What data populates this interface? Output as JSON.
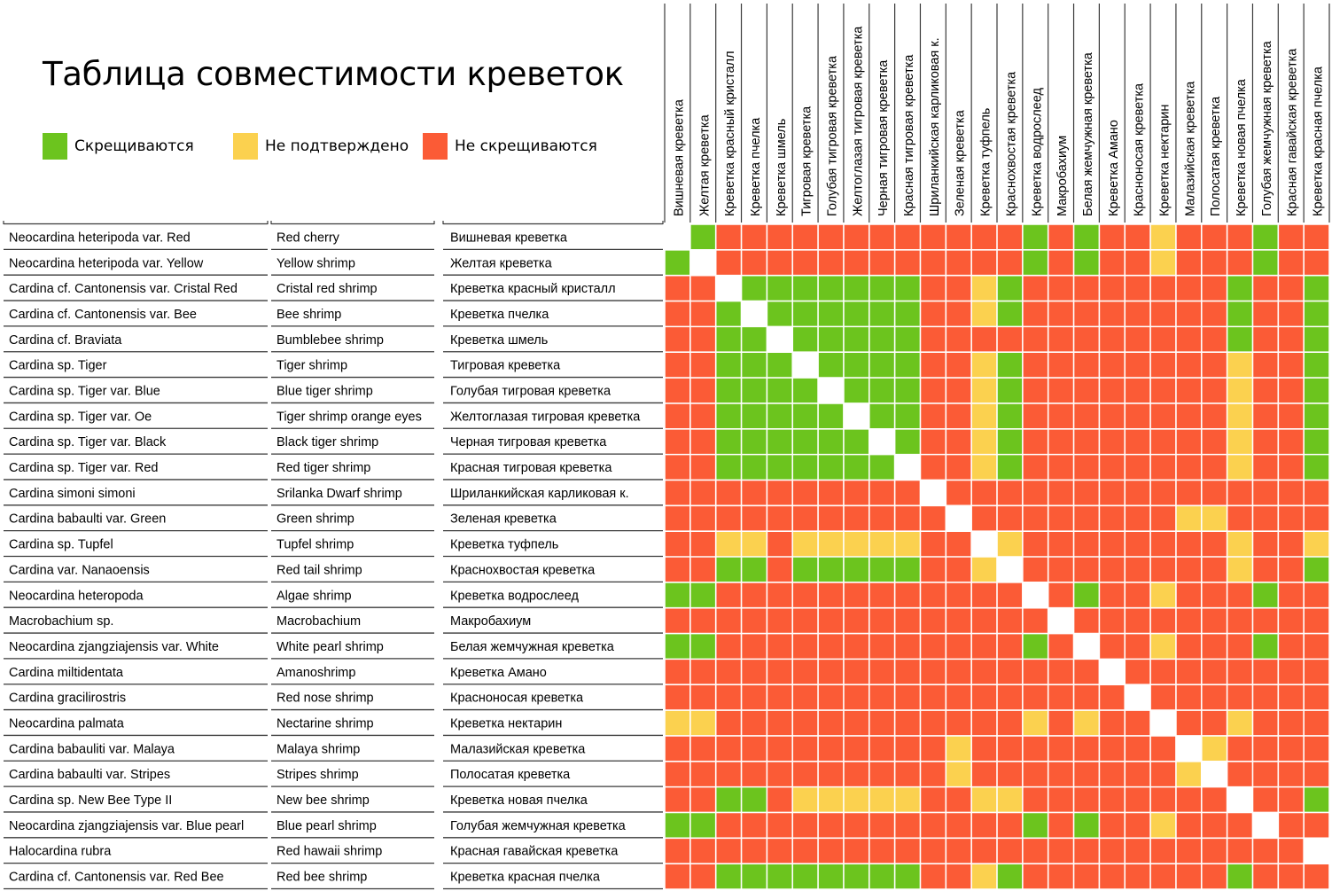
{
  "title": "Таблица совместимости креветок",
  "legend": [
    {
      "label": "Скрещиваются",
      "color": "#6cc41e"
    },
    {
      "label": "Не подтверждено",
      "color": "#fbd14f"
    },
    {
      "label": "Не скрещиваются",
      "color": "#fb5b36"
    }
  ],
  "colors": {
    "G": "#6cc41e",
    "Y": "#fbd14f",
    "R": "#fb5b36",
    "self": "#ffffff",
    "grid": "#ffffff",
    "rowline": "#3a3a3a"
  },
  "chart_data": {
    "type": "heatmap",
    "title": "Таблица совместимости креветок",
    "legend": {
      "G": "Скрещиваются",
      "Y": "Не подтверждено",
      "R": "Не скрещиваются",
      "-": ""
    },
    "columns": [
      "Вишневая креветка",
      "Желтая креветка",
      "Креветка красный кристалл",
      "Креветка пчелка",
      "Креветка шмель",
      "Тигровая креветка",
      "Голубая тигровая креветка",
      "Желтоглазая тигровая креветка",
      "Черная тигровая креветка",
      "Красная тигровая креветка",
      "Шриланкийская карликовая к.",
      "Зеленая креветка",
      "Креветка туфпель",
      "Краснохвостая креветка",
      "Креветка водрослеед",
      "Макробахиум",
      "Белая жемчужная креветка",
      "Креветка Амано",
      "Красноносая креветка",
      "Креветка нектарин",
      "Малазийская креветка",
      "Полосатая креветка",
      "Креветка новая пчелка",
      "Голубая жемчужная креветка",
      "Красная гавайская креветка",
      "Креветка красная пчелка"
    ],
    "rows": [
      {
        "latin": "Neocardina heteripoda var. Red",
        "english": "Red cherry",
        "russian": "Вишневая креветка"
      },
      {
        "latin": "Neocardina heteripoda var. Yellow",
        "english": "Yellow shrimp",
        "russian": "Желтая креветка"
      },
      {
        "latin": "Cardina cf. Cantonensis var. Cristal Red",
        "english": "Cristal red shrimp",
        "russian": "Креветка красный кристалл"
      },
      {
        "latin": "Cardina cf. Cantonensis var. Bee",
        "english": "Bee shrimp",
        "russian": "Креветка пчелка"
      },
      {
        "latin": "Cardina cf. Braviata",
        "english": "Bumblebee shrimp",
        "russian": "Креветка шмель"
      },
      {
        "latin": "Cardina sp. Tiger",
        "english": "Tiger shrimp",
        "russian": "Тигровая креветка"
      },
      {
        "latin": "Cardina sp. Tiger var. Blue",
        "english": "Blue tiger shrimp",
        "russian": "Голубая тигровая креветка"
      },
      {
        "latin": "Cardina sp. Tiger var. Oe",
        "english": "Tiger shrimp orange eyes",
        "russian": "Желтоглазая тигровая креветка"
      },
      {
        "latin": "Cardina sp. Tiger var. Black",
        "english": "Black tiger shrimp",
        "russian": "Черная тигровая креветка"
      },
      {
        "latin": "Cardina sp. Tiger var. Red",
        "english": "Red tiger shrimp",
        "russian": "Красная тигровая креветка"
      },
      {
        "latin": "Cardina simoni simoni",
        "english": "Srilanka Dwarf shrimp",
        "russian": "Шриланкийская карликовая к."
      },
      {
        "latin": "Cardina babaulti var. Green",
        "english": "Green shrimp",
        "russian": "Зеленая креветка"
      },
      {
        "latin": "Cardina sp. Tupfel",
        "english": "Tupfel shrimp",
        "russian": "Креветка туфпель"
      },
      {
        "latin": "Cardina var. Nanaoensis",
        "english": "Red tail shrimp",
        "russian": "Краснохвостая креветка"
      },
      {
        "latin": "Neocardina heteropoda",
        "english": "Algae shrimp",
        "russian": "Креветка водрослеед"
      },
      {
        "latin": "Macrobachium sp.",
        "english": "Macrobachium",
        "russian": "Макробахиум"
      },
      {
        "latin": "Neocardina zjangziajensis var. White",
        "english": "White pearl shrimp",
        "russian": "Белая жемчужная креветка"
      },
      {
        "latin": "Cardina miltidentata",
        "english": "Amanoshrimp",
        "russian": "Креветка Амано"
      },
      {
        "latin": "Cardina gracilirostris",
        "english": "Red nose shrimp",
        "russian": "Красноносая креветка"
      },
      {
        "latin": "Neocardina palmata",
        "english": "Nectarine shrimp",
        "russian": "Креветка нектарин"
      },
      {
        "latin": "Cardina babauliti var. Malaya",
        "english": "Malaya shrimp",
        "russian": "Малазийская креветка"
      },
      {
        "latin": "Cardina babaulti var. Stripes",
        "english": "Stripes shrimp",
        "russian": "Полосатая креветка"
      },
      {
        "latin": "Cardina sp. New Bee Type II",
        "english": "New bee shrimp",
        "russian": "Креветка новая пчелка"
      },
      {
        "latin": "Neocardina zjangziajensis var. Blue pearl",
        "english": "Blue pearl shrimp",
        "russian": "Голубая жемчужная креветка"
      },
      {
        "latin": "Halocardina rubra",
        "english": "Red hawaii shrimp",
        "russian": "Красная гавайская креветка"
      },
      {
        "latin": "Cardina cf. Cantonensis var. Red Bee",
        "english": "Red bee shrimp",
        "russian": "Креветка красная пчелка"
      }
    ],
    "matrix": [
      "-GRRRRRRRRRRRRGRGRRYRRRGRR",
      "G-RRRRRRRRRRRRGRGRRYRRRGRR",
      "RR-GGGGGGGRRYGRRRRRRRRGRRG",
      "RRG-GGGGGGRRYGRRRRRRRRGRRG",
      "RRGG-GGGGGRRRRRRRRRRRRGRRG",
      "RRGGG-GGGGRRYGRRRRRRRRYRRG",
      "RRGGGG-GGGRRYGRRRRRRRRYRRG",
      "RRGGGGG-GGRRYGRRRRRRRRYRRG",
      "RRGGGGGG-GRRYGRRRRRRRRYRRG",
      "RRGGGGGGG-RRYGRRRRRRRRYRRG",
      "RRRRRRRRRR-RRRRRRRRRRRRRRR",
      "RRRRRRRRRRR-RRRRRRRRYYRRRR",
      "RRYYRYYYYYRR-YRRRRRRRRYRRY",
      "RRGGRGGGGGRRY-RRRRRRRRYRRG",
      "GGRRRRRRRRRRRR-RGRRYRRRGRR",
      "RRRRRRRRRRRRRRR-RRRRRRRRRR",
      "GGRRRRRRRRRRRRGR-RRYRRRGRR",
      "RRRRRRRRRRRRRRRRR-RRRRRRRR",
      "RRRRRRRRRRRRRRRRRR-RRRRRRR",
      "YYRRRRRRRRRRRRYRYRR-RRYRRR",
      "RRRRRRRRRRRYRRRRRRRR-YRRRR",
      "RRRRRRRRRRRYRRRRRRRRY-RRRR",
      "RRGGRYYYYYRRYYRRRRRRRR-RRG",
      "GGRRRRRRRRRRRRGRGRRYRRR-RR",
      "RRRRRRRRRRRRRRRRRRRRRRRRR-",
      "RRGGGGGGGGRRYGRRRRRRRRGRRR"
    ]
  }
}
